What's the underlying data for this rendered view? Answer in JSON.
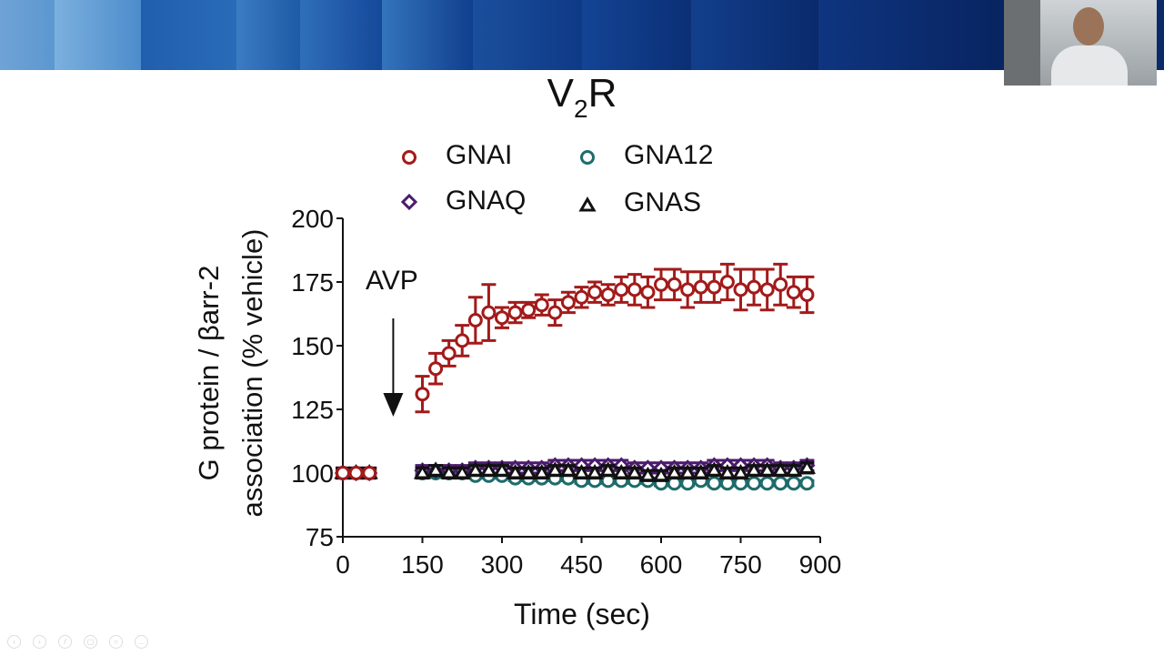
{
  "slide": {
    "title_main": "V",
    "title_sub": "2",
    "title_end": "R"
  },
  "controls": [
    "previous",
    "next",
    "pen",
    "slides",
    "zoom",
    "more"
  ],
  "chart_data": {
    "type": "scatter",
    "xlabel": "Time (sec)",
    "ylabel_line1": "G protein / βarr-2",
    "ylabel_line2": "association (% vehicle)",
    "xlim": [
      0,
      900
    ],
    "ylim": [
      75,
      200
    ],
    "xticks": [
      0,
      150,
      300,
      450,
      600,
      750,
      900
    ],
    "yticks": [
      75,
      100,
      125,
      150,
      175,
      200
    ],
    "grid": false,
    "legend_position": "top",
    "annotation": {
      "text": "AVP",
      "x": 95,
      "arrow": "down"
    },
    "x": [
      0,
      25,
      50,
      150,
      175,
      200,
      225,
      250,
      275,
      300,
      325,
      350,
      375,
      400,
      425,
      450,
      475,
      500,
      525,
      550,
      575,
      600,
      625,
      650,
      675,
      700,
      725,
      750,
      775,
      800,
      825,
      850,
      875
    ],
    "series": [
      {
        "name": "GNAI",
        "marker": "circle",
        "color": "#a31a1a",
        "values": [
          100,
          100,
          100,
          131,
          141,
          147,
          152,
          160,
          163,
          161,
          163,
          164,
          166,
          163,
          167,
          169,
          171,
          170,
          172,
          172,
          171,
          174,
          174,
          172,
          173,
          173,
          175,
          172,
          173,
          172,
          174,
          171,
          170
        ],
        "error": [
          1,
          1,
          1,
          7,
          6,
          5,
          6,
          9,
          11,
          4,
          4,
          3,
          4,
          5,
          4,
          4,
          4,
          4,
          5,
          6,
          6,
          6,
          6,
          7,
          6,
          6,
          7,
          8,
          7,
          8,
          8,
          6,
          7
        ]
      },
      {
        "name": "GNA12",
        "marker": "circle",
        "color": "#1f6b6b",
        "values": [
          100,
          100,
          100,
          100,
          100,
          100,
          100,
          99,
          99,
          99,
          98,
          98,
          98,
          98,
          98,
          97,
          97,
          97,
          97,
          97,
          97,
          96,
          96,
          96,
          97,
          96,
          96,
          96,
          96,
          96,
          96,
          96,
          96
        ],
        "error": 1
      },
      {
        "name": "GNAQ",
        "marker": "diamond",
        "color": "#4b1a6e",
        "values": [
          100,
          100,
          100,
          101,
          101,
          101,
          101,
          102,
          102,
          102,
          102,
          102,
          102,
          103,
          103,
          103,
          103,
          103,
          103,
          102,
          102,
          102,
          102,
          102,
          102,
          103,
          103,
          103,
          103,
          103,
          102,
          102,
          103
        ],
        "error": 2
      },
      {
        "name": "GNAS",
        "marker": "triangle",
        "color": "#111111",
        "values": [
          100,
          100,
          100,
          100,
          101,
          100,
          100,
          101,
          101,
          101,
          100,
          100,
          100,
          101,
          101,
          100,
          100,
          101,
          100,
          100,
          99,
          99,
          100,
          100,
          100,
          101,
          100,
          100,
          101,
          101,
          101,
          101,
          102
        ],
        "error": 2
      }
    ]
  }
}
